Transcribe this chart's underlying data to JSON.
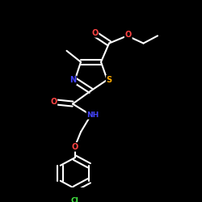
{
  "bg_color": "#000000",
  "bond_color": "#ffffff",
  "atom_colors": {
    "N": "#4444ff",
    "O": "#ff4444",
    "S": "#ffaa00",
    "Cl": "#44ee44",
    "C": "#ffffff",
    "H": "#ffffff"
  },
  "bond_width": 1.5,
  "dbo": 0.013,
  "figsize": [
    2.5,
    2.5
  ],
  "dpi": 100
}
